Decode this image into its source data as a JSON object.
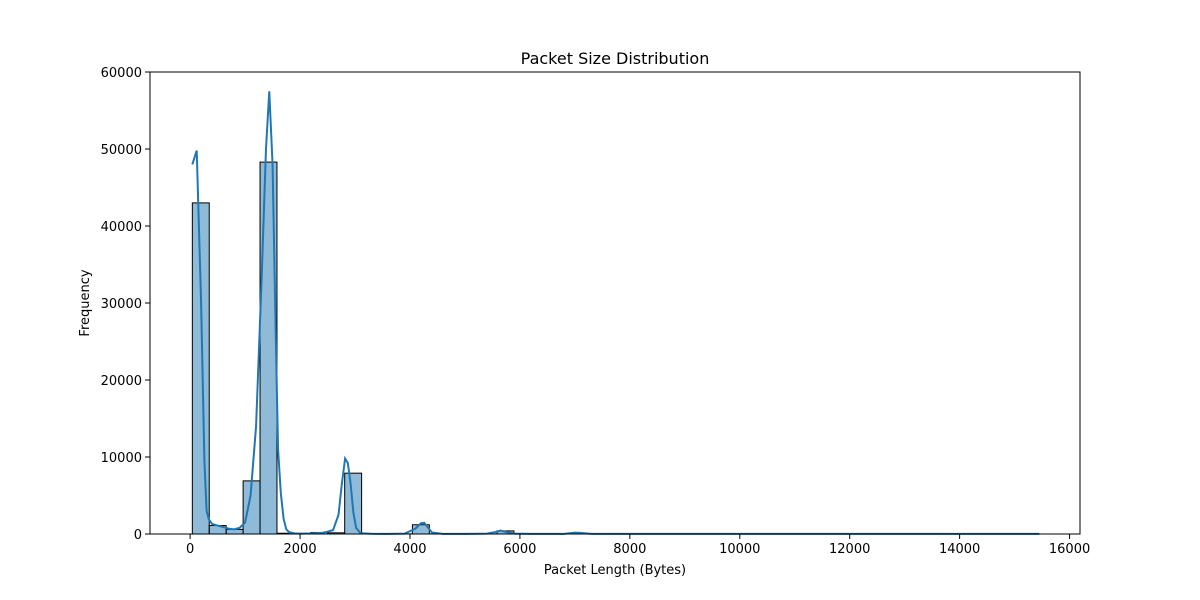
{
  "chart_data": {
    "type": "bar",
    "title": "Packet Size Distribution",
    "xlabel": "Packet Length (Bytes)",
    "ylabel": "Frequency",
    "xlim": [
      -730,
      16190
    ],
    "ylim": [
      0,
      60000
    ],
    "xticks": [
      0,
      2000,
      4000,
      6000,
      8000,
      10000,
      12000,
      14000,
      16000
    ],
    "yticks": [
      0,
      10000,
      20000,
      30000,
      40000,
      50000,
      60000
    ],
    "grid": false,
    "colors": {
      "bar_fill": "#1f77b4",
      "bar_fill_opacity": 0.5,
      "bar_edge": "#000000",
      "kde_line": "#1f77b4"
    },
    "histogram": {
      "bin_edges": [
        40,
        348,
        656,
        964,
        1272,
        1580,
        1888,
        2196,
        2504,
        2812,
        3120,
        3428,
        3736,
        4044,
        4352,
        4660,
        4968,
        5276,
        5584,
        5892
      ],
      "counts": [
        43000,
        1100,
        600,
        6900,
        48300,
        100,
        60,
        200,
        150,
        7900,
        30,
        20,
        20,
        1200,
        20,
        15,
        10,
        15,
        400
      ]
    },
    "kde": {
      "x": [
        40,
        120,
        200,
        260,
        300,
        340,
        400,
        500,
        600,
        700,
        800,
        900,
        1000,
        1100,
        1200,
        1300,
        1380,
        1440,
        1500,
        1560,
        1600,
        1650,
        1700,
        1750,
        1800,
        1900,
        2000,
        2200,
        2400,
        2500,
        2600,
        2700,
        2760,
        2820,
        2870,
        2920,
        2970,
        3020,
        3100,
        3300,
        3600,
        3900,
        4100,
        4200,
        4260,
        4320,
        4400,
        4600,
        5000,
        5400,
        5550,
        5650,
        5750,
        5900,
        6200,
        6800,
        7000,
        7100,
        7300,
        8000,
        10000,
        12000,
        14000,
        15450
      ],
      "y": [
        48000,
        49800,
        30000,
        9500,
        3000,
        1900,
        1300,
        1100,
        900,
        700,
        600,
        800,
        1500,
        5000,
        14000,
        33000,
        50000,
        57500,
        48000,
        25000,
        11000,
        5300,
        2000,
        600,
        250,
        80,
        50,
        80,
        150,
        300,
        500,
        2500,
        6500,
        9800,
        9200,
        6500,
        2800,
        800,
        100,
        30,
        20,
        50,
        700,
        1400,
        1450,
        900,
        200,
        20,
        10,
        50,
        250,
        450,
        250,
        50,
        10,
        20,
        180,
        150,
        20,
        10,
        10,
        10,
        10,
        10
      ]
    }
  }
}
